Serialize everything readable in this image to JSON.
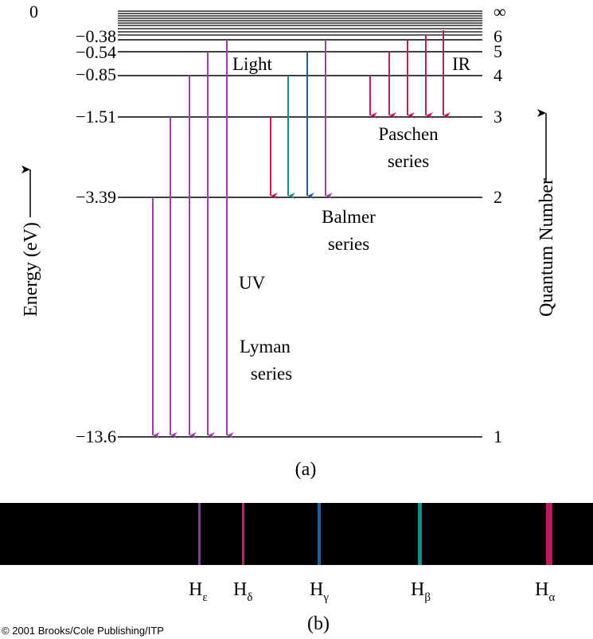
{
  "energy_axis_label": "Energy (eV)",
  "quantum_axis_label": "Quantum Number",
  "panel_a_label": "(a)",
  "panel_b_label": "(b)",
  "copyright": "© 2001 Brooks/Cole Publishing/ITP",
  "levels": [
    {
      "energy": "0",
      "n": "∞"
    },
    {
      "energy": "−0.38",
      "n": "6"
    },
    {
      "energy": "−0.54",
      "n": "5"
    },
    {
      "energy": "−0.85",
      "n": "4"
    },
    {
      "energy": "−1.51",
      "n": "3"
    },
    {
      "energy": "−3.39",
      "n": "2"
    },
    {
      "energy": "−13.6",
      "n": "1"
    }
  ],
  "region_labels": {
    "light": "Light",
    "ir": "IR",
    "uv": "UV"
  },
  "series": [
    {
      "id": "lyman",
      "lines": [
        "Lyman",
        "series"
      ],
      "lower_n": 1,
      "upper_n": [
        2,
        3,
        4,
        5,
        6
      ],
      "color": "#9b3fa8"
    },
    {
      "id": "balmer",
      "lines": [
        "Balmer",
        "series"
      ],
      "lower_n": 2,
      "upper_n": [
        3,
        4,
        5,
        6
      ],
      "colors": [
        "#c2185b",
        "#1a8a8a",
        "#1f5fa0",
        "#9b3fa8"
      ]
    },
    {
      "id": "paschen",
      "lines": [
        "Paschen",
        "series"
      ],
      "lower_n": 3,
      "upper_n": [
        4,
        5,
        6,
        7,
        8
      ],
      "color": "#c2185b"
    }
  ],
  "spectrum": {
    "background": "#000000",
    "lines": [
      {
        "label": "H",
        "sub": "ε",
        "color": "#7b3f8f"
      },
      {
        "label": "H",
        "sub": "δ",
        "color": "#a0306a"
      },
      {
        "label": "H",
        "sub": "γ",
        "color": "#1f5fa0"
      },
      {
        "label": "H",
        "sub": "β",
        "color": "#1a8a8a"
      },
      {
        "label": "H",
        "sub": "α",
        "color": "#c2185b"
      }
    ]
  }
}
